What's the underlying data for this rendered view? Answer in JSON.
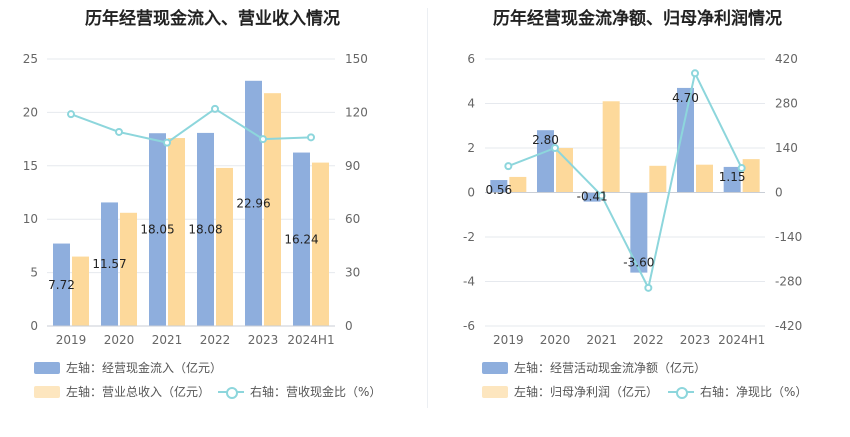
{
  "charts": [
    {
      "title": "历年经营现金流入、营业收入情况",
      "legend": [
        {
          "label": "左轴：经营现金流入（亿元）",
          "color": "#8eaedd",
          "kind": "bar"
        },
        {
          "label": "左轴：营业总收入（亿元）",
          "color": "#fdd99b",
          "kind": "bar"
        },
        {
          "label": "右轴：营收现金比（%）",
          "color": "#8dd6dc",
          "kind": "line"
        }
      ]
    },
    {
      "title": "历年经营现金流净额、归母净利润情况",
      "legend": [
        {
          "label": "左轴：经营活动现金流净额（亿元）",
          "color": "#8eaedd",
          "kind": "bar"
        },
        {
          "label": "左轴：归母净利润（亿元）",
          "color": "#fdd99b",
          "kind": "bar"
        },
        {
          "label": "右轴：净现比（%）",
          "color": "#8dd6dc",
          "kind": "line"
        }
      ]
    }
  ],
  "chart_data": [
    {
      "type": "bar",
      "categories": [
        "2019",
        "2020",
        "2021",
        "2022",
        "2023",
        "2024H1"
      ],
      "series": [
        {
          "name": "左轴：经营现金流入（亿元）",
          "axis": "left",
          "type": "bar",
          "color": "#8eaedd",
          "values": [
            7.72,
            11.57,
            18.05,
            18.08,
            22.96,
            16.24
          ],
          "labels": [
            "7.72",
            "11.57",
            "18.05",
            "18.08",
            "22.96",
            "16.24"
          ]
        },
        {
          "name": "左轴：营业总收入（亿元）",
          "axis": "left",
          "type": "bar",
          "color": "#fdd99b",
          "values": [
            6.5,
            10.6,
            17.6,
            14.8,
            21.8,
            15.3
          ]
        },
        {
          "name": "右轴：营收现金比（%）",
          "axis": "right",
          "type": "line",
          "color": "#8dd6dc",
          "values": [
            119,
            109,
            103,
            122,
            105,
            106
          ]
        }
      ],
      "left_axis": {
        "min": 0,
        "max": 25,
        "ticks": [
          "0",
          "5",
          "10",
          "15",
          "20",
          "25"
        ]
      },
      "right_axis": {
        "min": 0,
        "max": 150,
        "ticks": [
          "0",
          "30",
          "60",
          "90",
          "120",
          "150"
        ]
      },
      "grid": true,
      "legend_position": "bottom-left"
    },
    {
      "type": "bar",
      "categories": [
        "2019",
        "2020",
        "2021",
        "2022",
        "2023",
        "2024H1"
      ],
      "series": [
        {
          "name": "左轴：经营活动现金流净额（亿元）",
          "axis": "left",
          "type": "bar",
          "color": "#8eaedd",
          "values": [
            0.56,
            2.8,
            -0.41,
            -3.6,
            4.7,
            1.15
          ],
          "labels": [
            "0.56",
            "2.80",
            "-0.41",
            "-3.60",
            "4.70",
            "1.15"
          ]
        },
        {
          "name": "左轴：归母净利润（亿元）",
          "axis": "left",
          "type": "bar",
          "color": "#fdd99b",
          "values": [
            0.7,
            2.0,
            4.1,
            1.2,
            1.25,
            1.5
          ]
        },
        {
          "name": "右轴：净现比（%）",
          "axis": "right",
          "type": "line",
          "color": "#8dd6dc",
          "values": [
            83,
            140,
            -10,
            -300,
            375,
            77
          ]
        }
      ],
      "left_axis": {
        "min": -6,
        "max": 6,
        "ticks": [
          "-6",
          "-4",
          "-2",
          "0",
          "2",
          "4",
          "6"
        ]
      },
      "right_axis": {
        "min": -420,
        "max": 420,
        "ticks": [
          "-420",
          "-280",
          "-140",
          "0",
          "140",
          "280",
          "420"
        ]
      },
      "grid": true,
      "legend_position": "bottom-left"
    }
  ]
}
